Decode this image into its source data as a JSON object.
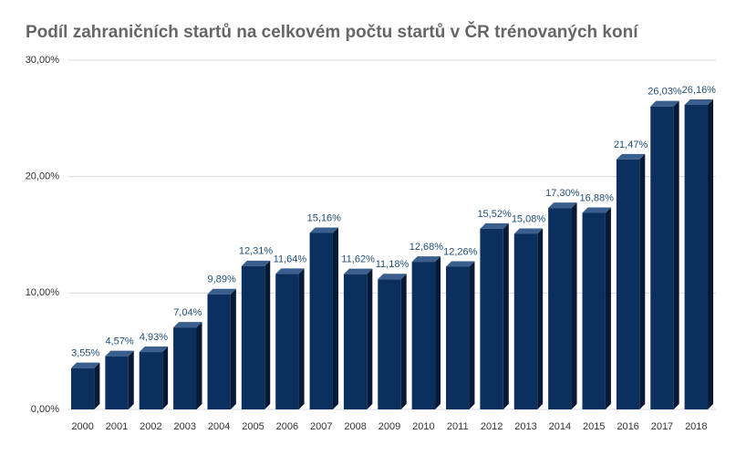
{
  "chart_data": {
    "type": "bar",
    "title": "Podíl zahraničních startů na celkovém počtu startů v ČR trénovaných koní",
    "categories": [
      "2000",
      "2001",
      "2002",
      "2003",
      "2004",
      "2005",
      "2006",
      "2007",
      "2008",
      "2009",
      "2010",
      "2011",
      "2012",
      "2013",
      "2014",
      "2015",
      "2016",
      "2017",
      "2018"
    ],
    "values": [
      3.55,
      4.57,
      4.93,
      7.04,
      9.89,
      12.31,
      11.64,
      15.16,
      11.62,
      11.18,
      12.68,
      12.26,
      15.52,
      15.08,
      17.3,
      16.88,
      21.47,
      26.03,
      26.16
    ],
    "value_labels": [
      "3,55%",
      "4,57%",
      "4,93%",
      "7,04%",
      "9,89%",
      "12,31%",
      "11,64%",
      "15,16%",
      "11,62%",
      "11,18%",
      "12,68%",
      "12,26%",
      "15,52%",
      "15,08%",
      "17,30%",
      "16,88%",
      "21,47%",
      "26,03%",
      "26,16%"
    ],
    "color": "#0b2f5e",
    "ylim": [
      0,
      30
    ],
    "yticks": [
      {
        "value": 0,
        "label": "0,00%"
      },
      {
        "value": 10,
        "label": "10,00%"
      },
      {
        "value": 20,
        "label": "20,00%"
      },
      {
        "value": 30,
        "label": "30,00%"
      }
    ],
    "grid": true
  }
}
